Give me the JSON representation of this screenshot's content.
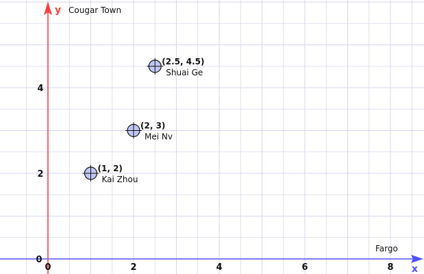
{
  "chart_data": {
    "type": "scatter",
    "x_axis": {
      "letter": "x",
      "caption": "Fargo",
      "ticks": [
        0,
        2,
        4,
        6,
        8
      ],
      "range": [
        0,
        8.8
      ]
    },
    "y_axis": {
      "letter": "y",
      "caption": "Cougar Town",
      "ticks": [
        0,
        2,
        4
      ],
      "range": [
        0,
        6
      ]
    },
    "grid": true,
    "colors": {
      "axis_x": "#5050ff",
      "axis_y": "#ff4040",
      "grid": "#d6d6f0",
      "point_fill": "#c0c6f5",
      "point_stroke": "#111111"
    },
    "points": [
      {
        "x": 1,
        "y": 2,
        "coord_label": "(1, 2)",
        "name": "Kai Zhou"
      },
      {
        "x": 2,
        "y": 3,
        "coord_label": "(2, 3)",
        "name": "Mei Nv"
      },
      {
        "x": 2.5,
        "y": 4.5,
        "coord_label": "(2.5, 4.5)",
        "name": "Shuai Ge"
      }
    ]
  }
}
